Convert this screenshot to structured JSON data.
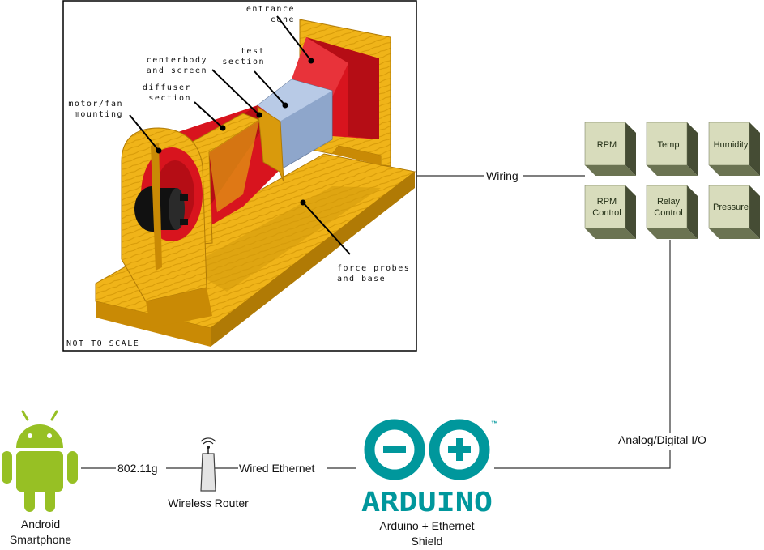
{
  "tunnel": {
    "labels": {
      "entrance_1": "entrance",
      "entrance_2": "cone",
      "test_1": "test",
      "test_2": "section",
      "centerbody_1": "centerbody",
      "centerbody_2": "and screen",
      "diffuser_1": "diffuser",
      "diffuser_2": "section",
      "motor_1": "motor/fan",
      "motor_2": "mounting",
      "force_1": "force probes",
      "force_2": "and base"
    },
    "note": "NOT TO SCALE"
  },
  "connections": {
    "wiring": "Wiring",
    "io": "Analog/Digital I/O",
    "wifi": "802.11g",
    "ethernet": "Wired Ethernet"
  },
  "sensor_boxes": [
    {
      "line1": "RPM",
      "line2": ""
    },
    {
      "line1": "Temp",
      "line2": ""
    },
    {
      "line1": "Humidity",
      "line2": ""
    },
    {
      "line1": "RPM",
      "line2": "Control"
    },
    {
      "line1": "Relay",
      "line2": "Control"
    },
    {
      "line1": "Pressure",
      "line2": ""
    }
  ],
  "devices": {
    "android_1": "Android",
    "android_2": "Smartphone",
    "router": "Wireless Router",
    "arduino_logo": "ARDUINO",
    "arduino_tm": "™",
    "arduino_1": "Arduino + Ethernet",
    "arduino_2": "Shield"
  },
  "colors": {
    "box_face": "#d8dcbc",
    "box_top": "#b7bc96",
    "box_side": "#454c34",
    "wood": "#f0b419",
    "wood_dark": "#c98a05",
    "red": "#d8141e",
    "android": "#97c024",
    "arduino": "#00979c"
  }
}
